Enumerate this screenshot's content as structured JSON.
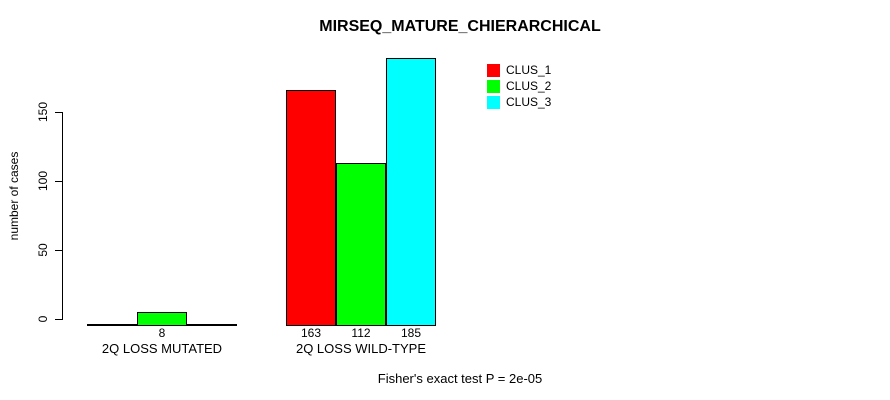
{
  "chart_data": {
    "type": "bar",
    "title": "MIRSEQ_MATURE_CHIERARCHICAL",
    "ylabel": "number of cases",
    "xlabel": "",
    "yticks": [
      0,
      50,
      100,
      150
    ],
    "ylim": [
      0,
      190
    ],
    "grid": false,
    "legend_position": "top-right",
    "categories": [
      "2Q LOSS MUTATED",
      "2Q LOSS WILD-TYPE"
    ],
    "series": [
      {
        "name": "CLUS_1",
        "color": "#ff0000",
        "values": [
          0,
          163
        ]
      },
      {
        "name": "CLUS_2",
        "color": "#00ff00",
        "values": [
          8,
          112
        ]
      },
      {
        "name": "CLUS_3",
        "color": "#00ffff",
        "values": [
          0,
          185
        ]
      }
    ],
    "bar_value_labels": [
      [
        "",
        "8",
        ""
      ],
      [
        "163",
        "112",
        "185"
      ]
    ],
    "annotation": "Fisher's exact test P = 2e-05"
  }
}
